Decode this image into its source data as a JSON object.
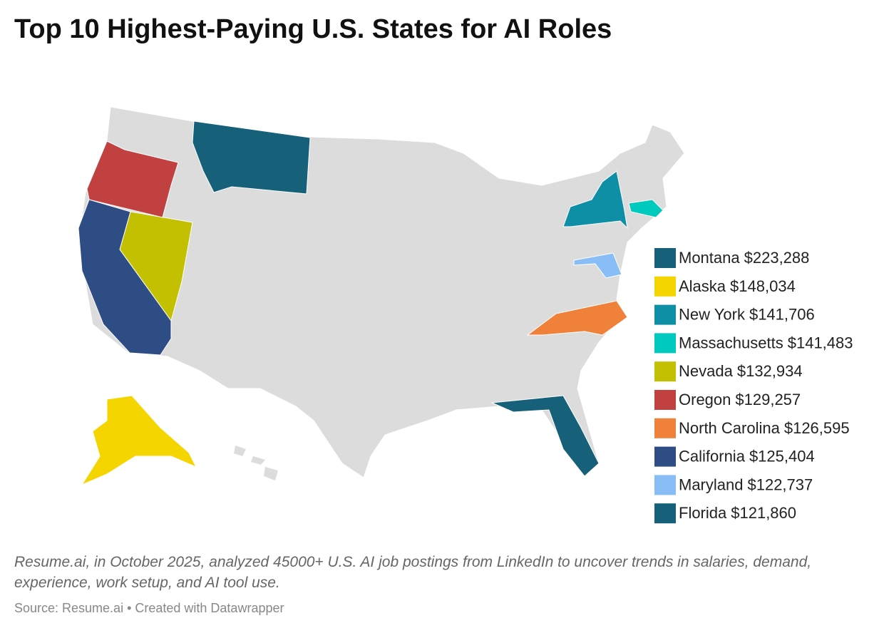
{
  "chart_data": {
    "type": "choropleth",
    "title": "Top 10 Highest-Paying U.S. States for AI Roles",
    "categories": [
      "Montana",
      "Alaska",
      "New York",
      "Massachusetts",
      "Nevada",
      "Oregon",
      "North Carolina",
      "California",
      "Maryland",
      "Florida"
    ],
    "values": [
      223288,
      148034,
      141706,
      141483,
      132934,
      129257,
      126595,
      125404,
      122737,
      121860
    ],
    "value_labels": [
      "$223,288",
      "$148,034",
      "$141,706",
      "$141,483",
      "$132,934",
      "$129,257",
      "$126,595",
      "$125,404",
      "$122,737",
      "$121,860"
    ],
    "colors": [
      "#17607a",
      "#f5d500",
      "#0f8fa6",
      "#00c9bd",
      "#c2c000",
      "#c0413f",
      "#f0813a",
      "#2e4d85",
      "#88bdf5",
      "#17607a"
    ],
    "note": "Resume.ai, in October 2025, analyzed 45000+ U.S. AI job postings from LinkedIn to uncover trends in salaries, demand, experience, work setup, and AI tool use.",
    "source": "Source: Resume.ai • Created with Datawrapper"
  }
}
